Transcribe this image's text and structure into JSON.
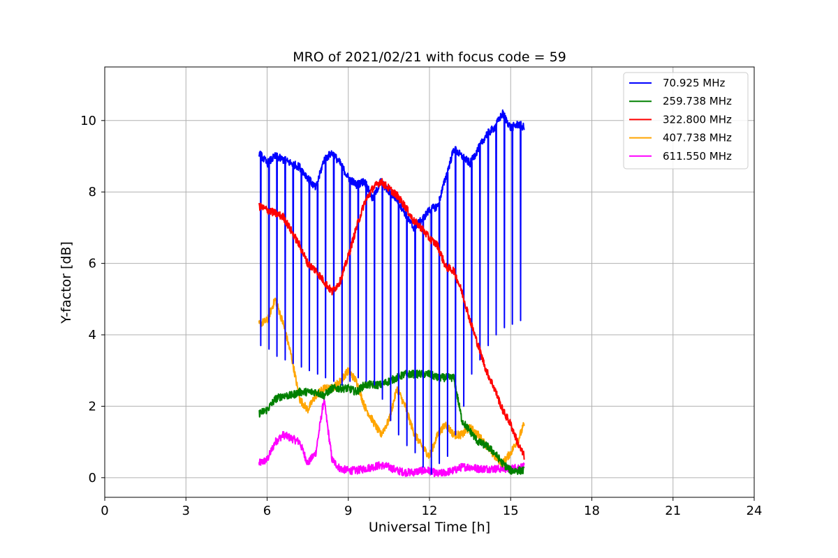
{
  "chart_data": {
    "type": "line",
    "title": "MRO of 2021/02/21 with focus code = 59",
    "xlabel": "Universal Time [h]",
    "ylabel": "Y-factor [dB]",
    "xlim": [
      0,
      24
    ],
    "ylim": [
      -0.55,
      11.5
    ],
    "xticks": [
      0,
      3,
      6,
      9,
      12,
      15,
      18,
      21,
      24
    ],
    "yticks": [
      0,
      2,
      4,
      6,
      8,
      10
    ],
    "grid": true,
    "legend_position": "top-right",
    "series": [
      {
        "name": "70.925 MHz",
        "label": "  70.925 MHz",
        "color": "#0000ff",
        "dips": true,
        "dip_period_h": 0.3,
        "dip_min": [
          3.7,
          3.6,
          3.4,
          3.3,
          3.2,
          3.1,
          3.0,
          2.9,
          2.8,
          2.7,
          2.6,
          2.7,
          2.8,
          2.7,
          2.6,
          2.2,
          1.6,
          1.2,
          0.9,
          0.7,
          0.3,
          0.1,
          0.4,
          0.6,
          1.2,
          2.0,
          2.9,
          3.3,
          3.7,
          4.0,
          4.2,
          4.3,
          4.4
        ],
        "x": [
          5.7,
          6.0,
          6.3,
          6.6,
          6.9,
          7.2,
          7.5,
          7.8,
          8.1,
          8.4,
          8.7,
          9.0,
          9.3,
          9.6,
          9.9,
          10.2,
          10.5,
          10.8,
          11.1,
          11.4,
          11.7,
          12.0,
          12.3,
          12.6,
          12.9,
          13.2,
          13.5,
          13.8,
          14.1,
          14.4,
          14.7,
          15.0,
          15.3,
          15.5
        ],
        "y": [
          9.1,
          8.8,
          9.0,
          8.9,
          8.8,
          8.7,
          8.4,
          8.1,
          8.9,
          9.1,
          8.8,
          8.4,
          8.2,
          8.3,
          7.8,
          8.3,
          8.0,
          7.8,
          7.4,
          7.0,
          7.2,
          7.5,
          7.6,
          8.4,
          9.2,
          9.0,
          8.8,
          9.2,
          9.6,
          9.8,
          10.2,
          9.8,
          9.9,
          9.8
        ]
      },
      {
        "name": "259.738 MHz",
        "label": "259.738 MHz",
        "color": "#008000",
        "x": [
          5.7,
          6.0,
          6.3,
          6.6,
          6.9,
          7.2,
          7.5,
          7.8,
          8.1,
          8.4,
          8.7,
          9.0,
          9.3,
          9.6,
          9.9,
          10.2,
          10.5,
          10.8,
          11.1,
          11.4,
          11.7,
          12.0,
          12.3,
          12.6,
          12.9,
          13.0,
          13.2,
          13.5,
          13.8,
          14.1,
          14.4,
          14.7,
          15.0,
          15.3,
          15.5
        ],
        "y": [
          1.8,
          1.9,
          2.2,
          2.3,
          2.3,
          2.4,
          2.4,
          2.4,
          2.3,
          2.5,
          2.5,
          2.5,
          2.4,
          2.6,
          2.6,
          2.6,
          2.7,
          2.8,
          2.9,
          2.9,
          2.9,
          2.9,
          2.8,
          2.8,
          2.8,
          2.4,
          1.6,
          1.3,
          1.0,
          0.9,
          0.7,
          0.4,
          0.2,
          0.2,
          0.2
        ]
      },
      {
        "name": "322.800 MHz",
        "label": "322.800 MHz",
        "color": "#ff0000",
        "x": [
          5.7,
          6.0,
          6.3,
          6.6,
          6.9,
          7.2,
          7.5,
          7.8,
          8.1,
          8.4,
          8.7,
          9.0,
          9.3,
          9.6,
          9.9,
          10.2,
          10.5,
          10.8,
          11.1,
          11.4,
          11.7,
          12.0,
          12.3,
          12.6,
          12.9,
          13.2,
          13.5,
          13.8,
          14.1,
          14.4,
          14.7,
          15.0,
          15.3,
          15.5
        ],
        "y": [
          7.6,
          7.5,
          7.4,
          7.3,
          6.9,
          6.5,
          6.0,
          5.8,
          5.5,
          5.2,
          5.5,
          6.2,
          7.0,
          7.7,
          8.1,
          8.3,
          8.1,
          7.9,
          7.6,
          7.2,
          7.0,
          6.7,
          6.5,
          5.9,
          5.8,
          5.2,
          4.4,
          3.7,
          3.0,
          2.5,
          1.9,
          1.5,
          0.9,
          0.6
        ]
      },
      {
        "name": "407.738 MHz",
        "label": "407.738 MHz",
        "color": "#ffa500",
        "x": [
          5.7,
          6.0,
          6.3,
          6.6,
          6.9,
          7.2,
          7.5,
          7.8,
          8.1,
          8.4,
          8.7,
          9.0,
          9.3,
          9.6,
          9.9,
          10.2,
          10.5,
          10.8,
          11.1,
          11.4,
          11.7,
          12.0,
          12.3,
          12.6,
          12.9,
          13.2,
          13.5,
          13.8,
          14.1,
          14.4,
          14.7,
          15.0,
          15.3,
          15.5
        ],
        "y": [
          4.3,
          4.4,
          5.0,
          4.3,
          3.4,
          2.2,
          1.9,
          2.3,
          2.5,
          2.5,
          2.7,
          3.0,
          2.7,
          2.0,
          1.6,
          1.2,
          1.6,
          2.5,
          2.0,
          1.3,
          0.9,
          0.6,
          1.2,
          1.5,
          1.2,
          1.2,
          1.4,
          1.2,
          0.9,
          0.6,
          0.4,
          0.7,
          1.1,
          1.5
        ]
      },
      {
        "name": "611.550 MHz",
        "label": "611.550 MHz",
        "color": "#ff00ff",
        "x": [
          5.7,
          6.0,
          6.3,
          6.6,
          6.9,
          7.2,
          7.5,
          7.8,
          8.1,
          8.4,
          8.7,
          9.0,
          9.3,
          9.6,
          9.9,
          10.2,
          10.5,
          10.8,
          11.1,
          11.4,
          11.7,
          12.0,
          12.3,
          12.6,
          12.9,
          13.2,
          13.5,
          13.8,
          14.1,
          14.4,
          14.7,
          15.0,
          15.3,
          15.5
        ],
        "y": [
          0.4,
          0.5,
          1.0,
          1.2,
          1.1,
          1.0,
          0.4,
          0.7,
          2.2,
          0.5,
          0.25,
          0.2,
          0.2,
          0.25,
          0.3,
          0.35,
          0.3,
          0.2,
          0.15,
          0.15,
          0.2,
          0.2,
          0.1,
          0.15,
          0.2,
          0.3,
          0.3,
          0.25,
          0.25,
          0.25,
          0.25,
          0.25,
          0.3,
          0.3
        ]
      }
    ]
  }
}
